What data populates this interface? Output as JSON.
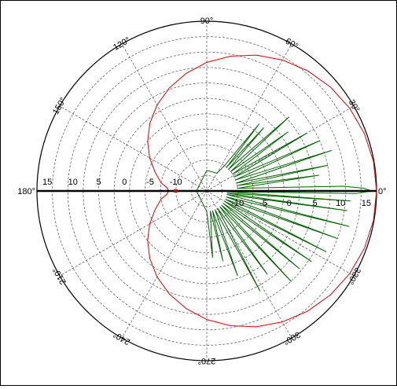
{
  "chart_data": {
    "type": "polar",
    "title": "",
    "angle_unit": "degrees",
    "angle_zero_direction": "east",
    "angle_direction": "counterclockwise",
    "angle_ticks": [
      0,
      30,
      60,
      90,
      120,
      150,
      180,
      210,
      240,
      270,
      300,
      330
    ],
    "angle_tick_labels": [
      "0°",
      "30°",
      "60°",
      "90°",
      "120°",
      "150°",
      "180°",
      "210°",
      "240°",
      "270°",
      "300°",
      "330°"
    ],
    "radial_range": [
      -16,
      17
    ],
    "radial_ticks": [
      -10,
      -5,
      0,
      5,
      10,
      15
    ],
    "radial_tick_labels": [
      "-10",
      "-5",
      "0",
      "5",
      "10",
      "15"
    ],
    "grid": true,
    "colors": {
      "series_1": "#e00000",
      "series_2": "#006400",
      "axis": "#000000",
      "grid": "#666666"
    },
    "series": [
      {
        "name": "",
        "color": "#e00000",
        "theta": [
          0,
          10,
          20,
          30,
          40,
          50,
          60,
          70,
          80,
          90,
          100,
          110,
          120,
          130,
          140,
          150,
          160,
          170,
          175,
          180,
          185,
          190,
          200,
          210,
          220,
          230,
          240,
          250,
          260,
          270,
          280,
          290,
          300,
          310,
          320,
          330,
          340,
          350,
          360
        ],
        "r": [
          17,
          16.9,
          16.6,
          16.1,
          15.4,
          14.5,
          13.4,
          12.1,
          10.6,
          9,
          7.2,
          5.3,
          3.3,
          1.2,
          -1,
          -3.2,
          -5.3,
          -7,
          -8.2,
          -8.6,
          -8.2,
          -7,
          -5.3,
          -3.2,
          -1,
          1.2,
          3.3,
          5.3,
          7.2,
          9,
          10.6,
          12.1,
          13.4,
          14.5,
          15.4,
          16.1,
          16.6,
          16.9,
          17
        ]
      },
      {
        "name": "",
        "color": "#006400",
        "theta": [
          0,
          1,
          2,
          5,
          8,
          10,
          12,
          15,
          18,
          21,
          24,
          27,
          30,
          33,
          36,
          39,
          42,
          45,
          48,
          50,
          52,
          55,
          60,
          90,
          180,
          270,
          275,
          280,
          283,
          286,
          290,
          294,
          298,
          302,
          306,
          310,
          313,
          316,
          320,
          323,
          326,
          330,
          333,
          336,
          340,
          343,
          346,
          350,
          352,
          354,
          356,
          358,
          359,
          360
        ],
        "r": [
          16,
          14.5,
          10.5,
          -10,
          6,
          -10,
          8,
          -10,
          9.5,
          -10,
          8,
          -10,
          6.5,
          -10,
          3.5,
          -10,
          5.5,
          -10,
          0.5,
          -10,
          0.5,
          -10,
          -12,
          -12,
          -14,
          -12,
          -3,
          -12,
          -2,
          -12,
          1.5,
          -12,
          6,
          -12,
          4,
          -12,
          8,
          -12,
          7.5,
          -12,
          8.5,
          -12,
          10,
          -12,
          11,
          -12,
          12.5,
          -12,
          11.5,
          -12,
          12,
          -12,
          13,
          16
        ]
      }
    ]
  }
}
